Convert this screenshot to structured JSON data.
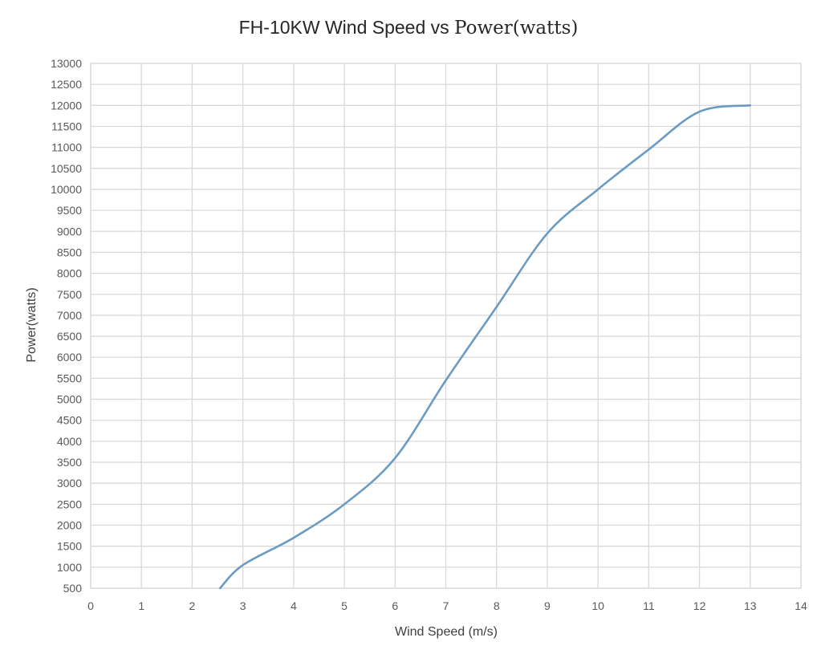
{
  "chart_data": {
    "type": "line",
    "title_main": "FH-10KW Wind Speed vs ",
    "title_tail": "Power(watts)",
    "xlabel": "Wind Speed (m/s)",
    "ylabel": "Power(watts)",
    "xlim": [
      0,
      14
    ],
    "ylim": [
      500,
      13000
    ],
    "x_ticks": [
      0,
      1,
      2,
      3,
      4,
      5,
      6,
      7,
      8,
      9,
      10,
      11,
      12,
      13,
      14
    ],
    "y_ticks": [
      500,
      1000,
      1500,
      2000,
      2500,
      3000,
      3500,
      4000,
      4500,
      5000,
      5500,
      6000,
      6500,
      7000,
      7500,
      8000,
      8500,
      9000,
      9500,
      10000,
      10500,
      11000,
      11500,
      12000,
      12500,
      13000
    ],
    "grid": true,
    "legend": "none",
    "series": [
      {
        "color": "#6b9bc3",
        "x": [
          2.55,
          3,
          4,
          5,
          6,
          7,
          8,
          9,
          10,
          11,
          12,
          13
        ],
        "y": [
          500,
          1050,
          1700,
          2500,
          3600,
          5450,
          7200,
          8950,
          10000,
          10950,
          11850,
          12000
        ]
      }
    ]
  }
}
